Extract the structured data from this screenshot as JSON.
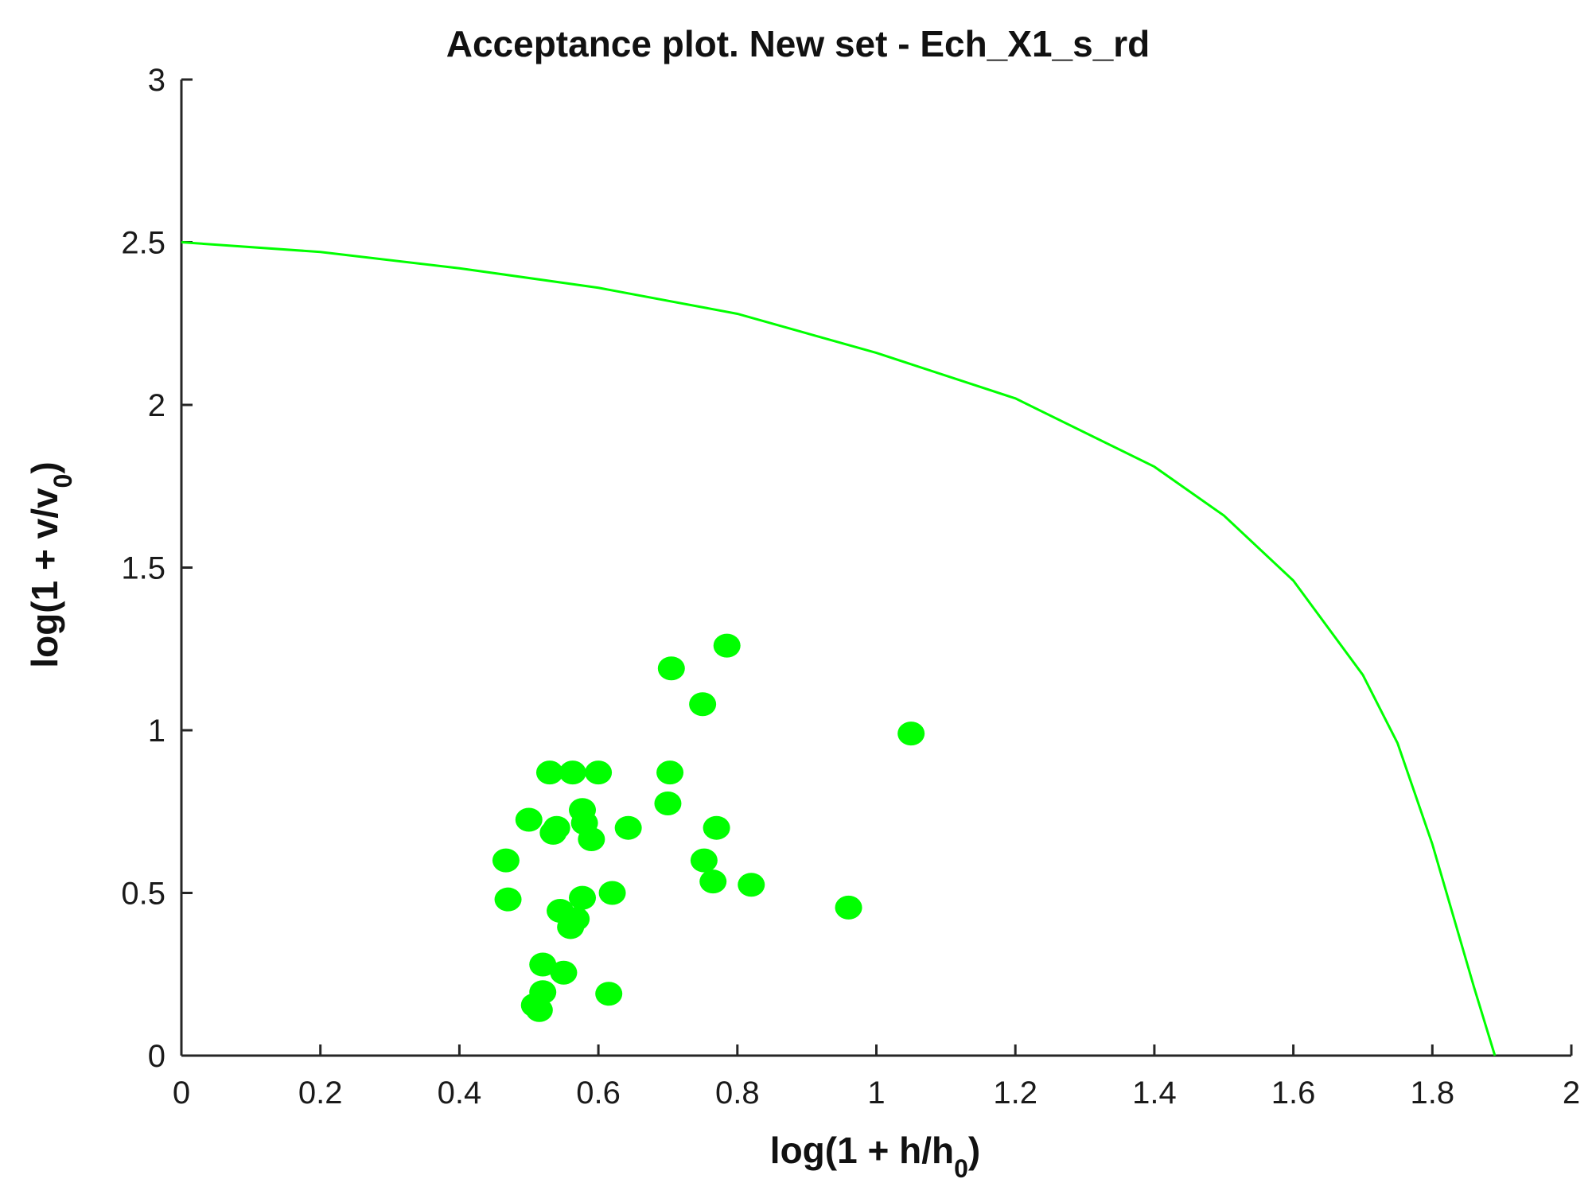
{
  "chart_data": {
    "type": "scatter",
    "title": "Acceptance plot. New set - Ech_X1_s_rd",
    "xlabel": {
      "main": "log(1 + h/h",
      "sub": "0",
      "close": ")"
    },
    "ylabel": {
      "main": "log(1 + v/v",
      "sub": "0",
      "close": ")"
    },
    "xlim": [
      0,
      2
    ],
    "ylim": [
      0,
      3
    ],
    "xticks": [
      0,
      0.2,
      0.4,
      0.6,
      0.8,
      1,
      1.2,
      1.4,
      1.6,
      1.8,
      2
    ],
    "xtick_labels": [
      "0",
      "0.2",
      "0.4",
      "0.6",
      "0.8",
      "1",
      "1.2",
      "1.4",
      "1.6",
      "1.8",
      "2"
    ],
    "yticks": [
      0,
      0.5,
      1,
      1.5,
      2,
      2.5,
      3
    ],
    "ytick_labels": [
      "0",
      "0.5",
      "1",
      "1.5",
      "2",
      "2.5",
      "3"
    ],
    "grid": false,
    "color": "#00ff00",
    "curve": {
      "description": "acceptance boundary",
      "x": [
        0,
        0.2,
        0.4,
        0.6,
        0.8,
        1.0,
        1.2,
        1.4,
        1.5,
        1.6,
        1.7,
        1.75,
        1.8,
        1.83,
        1.86,
        1.89
      ],
      "y": [
        2.5,
        2.47,
        2.42,
        2.36,
        2.28,
        2.16,
        2.02,
        1.81,
        1.66,
        1.46,
        1.17,
        0.96,
        0.65,
        0.43,
        0.21,
        0.0
      ]
    },
    "points": {
      "x": [
        0.785,
        0.705,
        0.75,
        1.05,
        0.53,
        0.563,
        0.6,
        0.703,
        0.7,
        0.577,
        0.58,
        0.5,
        0.535,
        0.54,
        0.59,
        0.643,
        0.77,
        0.467,
        0.752,
        0.765,
        0.82,
        0.62,
        0.577,
        0.47,
        0.545,
        0.568,
        0.56,
        0.96,
        0.52,
        0.55,
        0.52,
        0.615,
        0.508,
        0.515
      ],
      "y": [
        1.26,
        1.19,
        1.08,
        0.99,
        0.87,
        0.87,
        0.87,
        0.87,
        0.775,
        0.755,
        0.715,
        0.725,
        0.685,
        0.7,
        0.665,
        0.7,
        0.7,
        0.6,
        0.6,
        0.535,
        0.525,
        0.5,
        0.485,
        0.48,
        0.445,
        0.42,
        0.395,
        0.455,
        0.28,
        0.255,
        0.195,
        0.19,
        0.155,
        0.14
      ]
    }
  }
}
